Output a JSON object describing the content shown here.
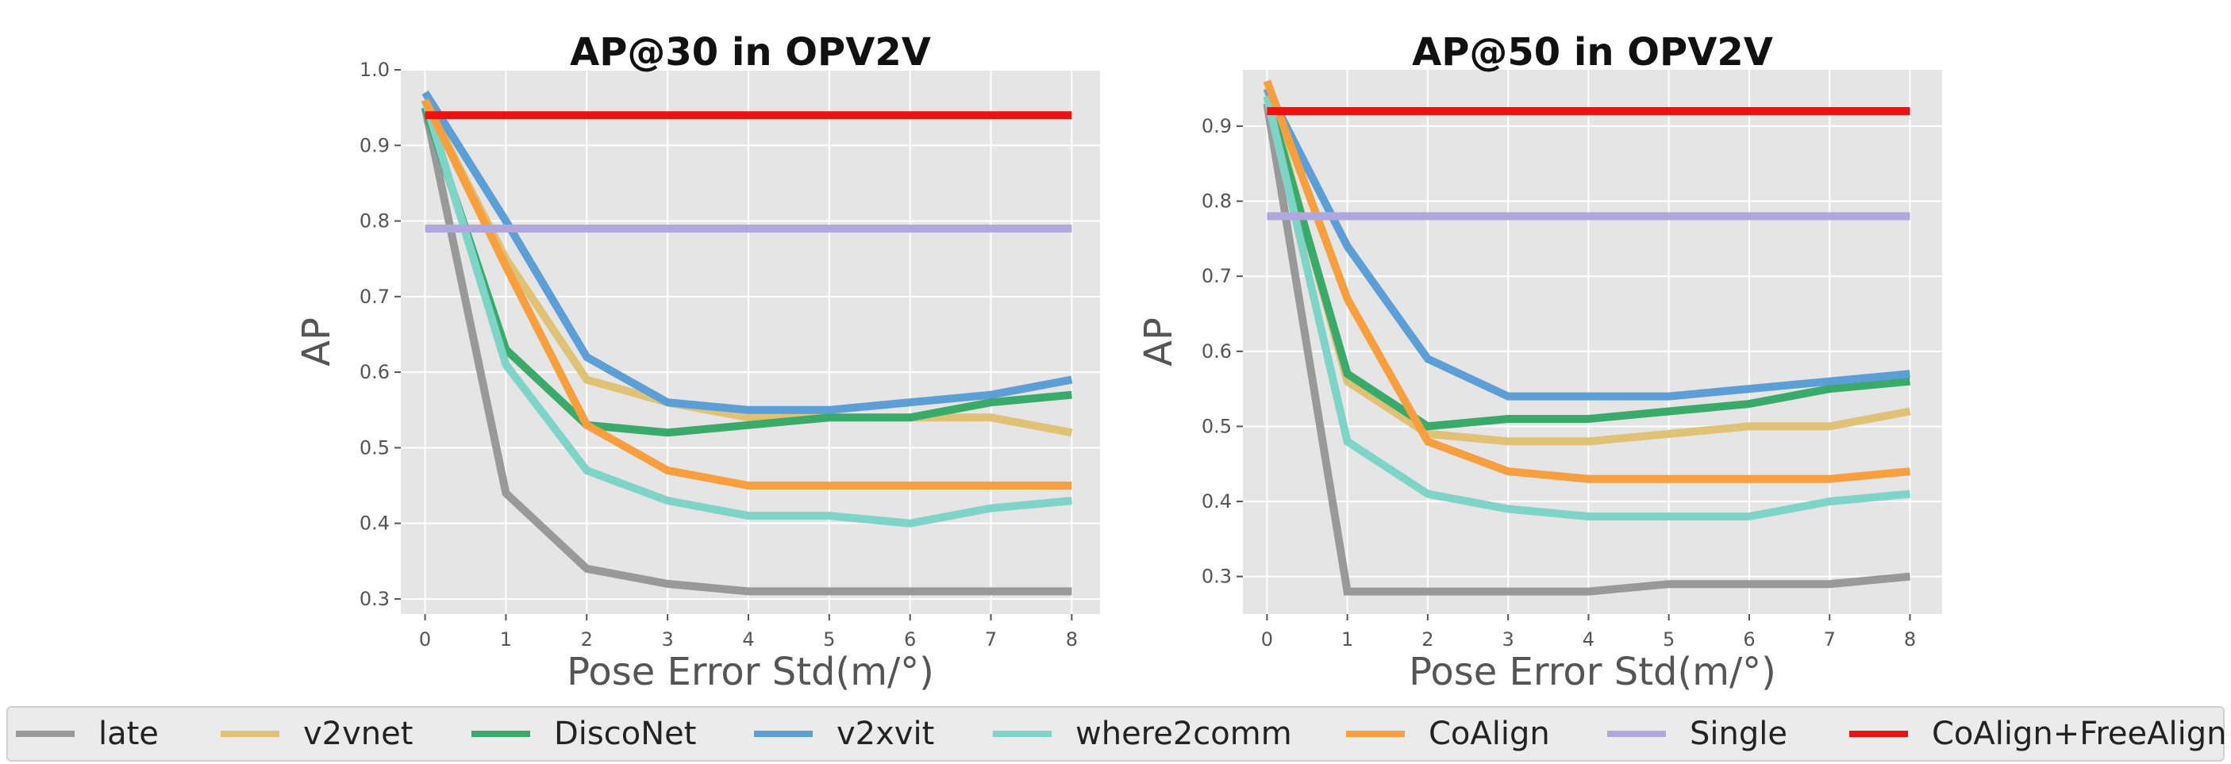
{
  "chart_data": [
    {
      "type": "line",
      "title": "AP@30 in OPV2V",
      "xlabel": "Pose Error Std(m/°)",
      "ylabel": "AP",
      "x": [
        0,
        1,
        2,
        3,
        4,
        5,
        6,
        7,
        8
      ],
      "xlim": [
        -0.3,
        8.35
      ],
      "ylim": [
        0.28,
        1.0
      ],
      "yticks": [
        0.3,
        0.4,
        0.5,
        0.6,
        0.7,
        0.8,
        0.9,
        1.0
      ],
      "grid": true,
      "series": [
        {
          "name": "late",
          "values": [
            0.95,
            0.44,
            0.34,
            0.32,
            0.31,
            0.31,
            0.31,
            0.31,
            0.31
          ]
        },
        {
          "name": "v2vnet",
          "values": [
            0.96,
            0.75,
            0.59,
            0.56,
            0.54,
            0.54,
            0.54,
            0.54,
            0.52
          ]
        },
        {
          "name": "DiscoNet",
          "values": [
            0.95,
            0.63,
            0.53,
            0.52,
            0.53,
            0.54,
            0.54,
            0.56,
            0.57
          ]
        },
        {
          "name": "v2xvit",
          "values": [
            0.97,
            0.8,
            0.62,
            0.56,
            0.55,
            0.55,
            0.56,
            0.57,
            0.59
          ]
        },
        {
          "name": "where2comm",
          "values": [
            0.96,
            0.61,
            0.47,
            0.43,
            0.41,
            0.41,
            0.4,
            0.42,
            0.43
          ]
        },
        {
          "name": "CoAlign",
          "values": [
            0.96,
            0.74,
            0.53,
            0.47,
            0.45,
            0.45,
            0.45,
            0.45,
            0.45
          ]
        },
        {
          "name": "Single",
          "values": [
            0.79,
            0.79,
            0.79,
            0.79,
            0.79,
            0.79,
            0.79,
            0.79,
            0.79
          ]
        },
        {
          "name": "CoAlign+FreeAlign",
          "values": [
            0.94,
            0.94,
            0.94,
            0.94,
            0.94,
            0.94,
            0.94,
            0.94,
            0.94
          ]
        }
      ]
    },
    {
      "type": "line",
      "title": "AP@50 in OPV2V",
      "xlabel": "Pose Error Std(m/°)",
      "ylabel": "AP",
      "x": [
        0,
        1,
        2,
        3,
        4,
        5,
        6,
        7,
        8
      ],
      "xlim": [
        -0.3,
        8.4
      ],
      "ylim": [
        0.25,
        0.975
      ],
      "yticks": [
        0.3,
        0.4,
        0.5,
        0.6,
        0.7,
        0.8,
        0.9
      ],
      "grid": true,
      "series": [
        {
          "name": "late",
          "values": [
            0.93,
            0.28,
            0.28,
            0.28,
            0.28,
            0.29,
            0.29,
            0.29,
            0.3
          ]
        },
        {
          "name": "v2vnet",
          "values": [
            0.95,
            0.56,
            0.49,
            0.48,
            0.48,
            0.49,
            0.5,
            0.5,
            0.52
          ]
        },
        {
          "name": "DiscoNet",
          "values": [
            0.94,
            0.57,
            0.5,
            0.51,
            0.51,
            0.52,
            0.53,
            0.55,
            0.56
          ]
        },
        {
          "name": "v2xvit",
          "values": [
            0.95,
            0.74,
            0.59,
            0.54,
            0.54,
            0.54,
            0.55,
            0.56,
            0.57
          ]
        },
        {
          "name": "where2comm",
          "values": [
            0.94,
            0.48,
            0.41,
            0.39,
            0.38,
            0.38,
            0.38,
            0.4,
            0.41
          ]
        },
        {
          "name": "CoAlign",
          "values": [
            0.96,
            0.67,
            0.48,
            0.44,
            0.43,
            0.43,
            0.43,
            0.43,
            0.44
          ]
        },
        {
          "name": "Single",
          "values": [
            0.78,
            0.78,
            0.78,
            0.78,
            0.78,
            0.78,
            0.78,
            0.78,
            0.78
          ]
        },
        {
          "name": "CoAlign+FreeAlign",
          "values": [
            0.92,
            0.92,
            0.92,
            0.92,
            0.92,
            0.92,
            0.92,
            0.92,
            0.92
          ]
        }
      ]
    }
  ],
  "legend": {
    "placement": "bottom",
    "items": [
      {
        "label": "late",
        "color": "#999999"
      },
      {
        "label": "v2vnet",
        "color": "#e0c276"
      },
      {
        "label": "DiscoNet",
        "color": "#3aaa6a"
      },
      {
        "label": "v2xvit",
        "color": "#5b9fd6"
      },
      {
        "label": "where2comm",
        "color": "#7fd4c8"
      },
      {
        "label": "CoAlign",
        "color": "#f79e3e"
      },
      {
        "label": "Single",
        "color": "#b0a8dc"
      },
      {
        "label": "CoAlign+FreeAlign",
        "color": "#ee1111"
      }
    ]
  }
}
